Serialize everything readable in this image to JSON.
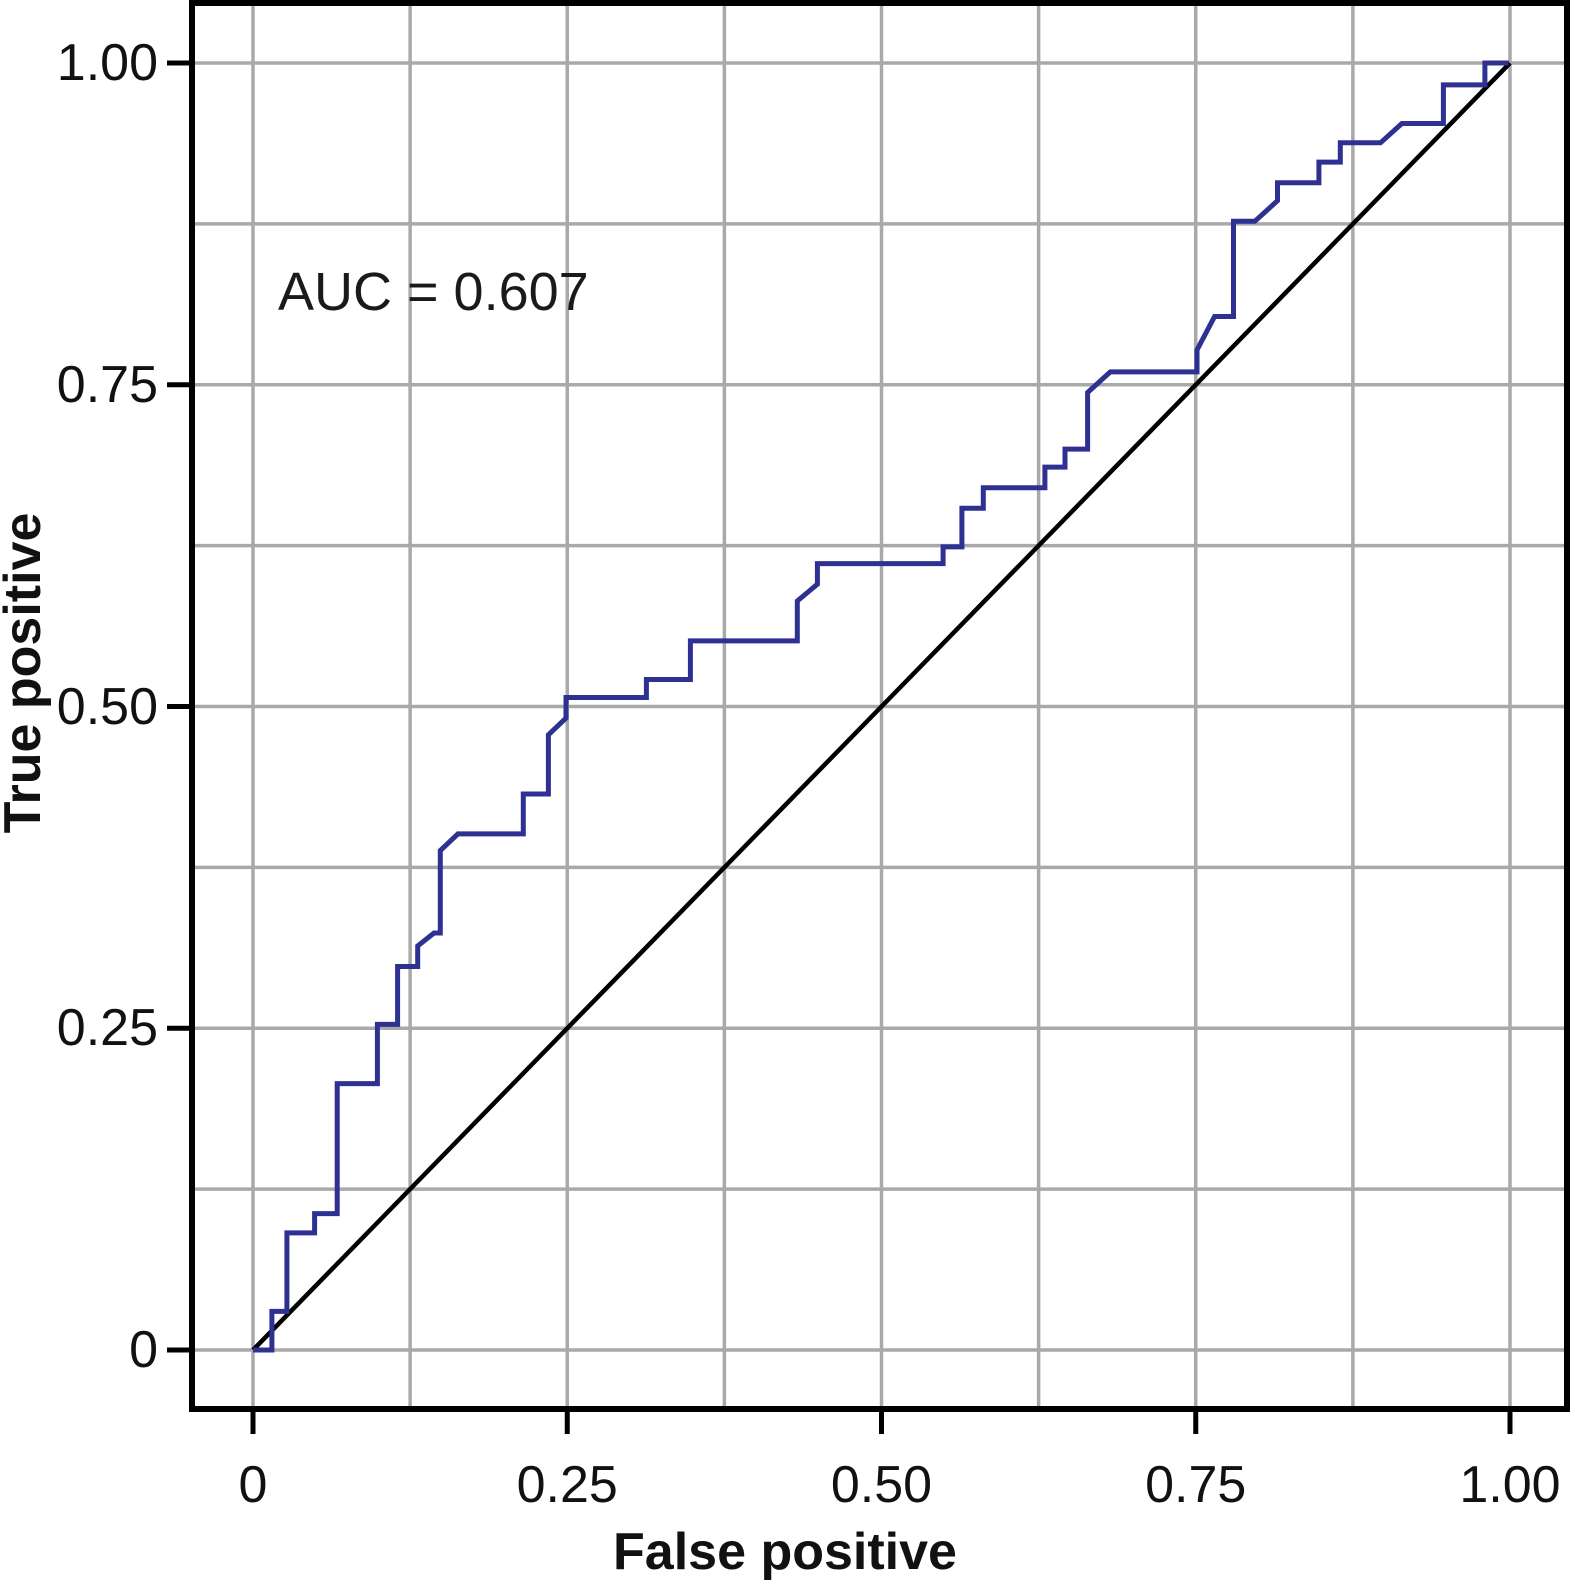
{
  "page": {
    "background_color": "#ffffff"
  },
  "chart_data": {
    "type": "line",
    "subtype": "roc-curve",
    "title": "",
    "annotation": "AUC = 0.607",
    "auc_value": 0.607,
    "xlabel": "False positive",
    "ylabel": "True positive",
    "xlim": [
      -0.05,
      1.047
    ],
    "ylim": [
      -0.047,
      1.047
    ],
    "grid": "on",
    "grid_step": 0.125,
    "legend_position": "none",
    "x_ticks": {
      "values": [
        0,
        0.25,
        0.5,
        0.75,
        1.0
      ],
      "labels": [
        "0",
        "0.25",
        "0.50",
        "0.75",
        "1.00"
      ]
    },
    "y_ticks": {
      "values": [
        0,
        0.25,
        0.5,
        0.75,
        1.0
      ],
      "labels": [
        "0",
        "0.25",
        "0.50",
        "0.75",
        "1.00"
      ]
    },
    "colors": {
      "roc_line": "#2e3192",
      "reference_line": "#000000",
      "gridline": "#a9a9a9",
      "frame": "#000000",
      "tick": "#000000",
      "text": "#111111"
    },
    "series": [
      {
        "name": "ROC curve",
        "color": "#2e3192",
        "width": 5,
        "points": [
          [
            0.0,
            0.0
          ],
          [
            0.015,
            0.0
          ],
          [
            0.015,
            0.03
          ],
          [
            0.027,
            0.03
          ],
          [
            0.027,
            0.091
          ],
          [
            0.049,
            0.091
          ],
          [
            0.049,
            0.106
          ],
          [
            0.067,
            0.106
          ],
          [
            0.067,
            0.207
          ],
          [
            0.099,
            0.207
          ],
          [
            0.099,
            0.253
          ],
          [
            0.115,
            0.253
          ],
          [
            0.115,
            0.298
          ],
          [
            0.131,
            0.298
          ],
          [
            0.131,
            0.314
          ],
          [
            0.144,
            0.324
          ],
          [
            0.149,
            0.324
          ],
          [
            0.149,
            0.388
          ],
          [
            0.163,
            0.401
          ],
          [
            0.215,
            0.401
          ],
          [
            0.215,
            0.432
          ],
          [
            0.235,
            0.432
          ],
          [
            0.235,
            0.478
          ],
          [
            0.249,
            0.491
          ],
          [
            0.249,
            0.507
          ],
          [
            0.313,
            0.507
          ],
          [
            0.313,
            0.521
          ],
          [
            0.348,
            0.521
          ],
          [
            0.348,
            0.551
          ],
          [
            0.433,
            0.551
          ],
          [
            0.433,
            0.582
          ],
          [
            0.449,
            0.595
          ],
          [
            0.449,
            0.611
          ],
          [
            0.549,
            0.611
          ],
          [
            0.549,
            0.624
          ],
          [
            0.564,
            0.624
          ],
          [
            0.564,
            0.654
          ],
          [
            0.581,
            0.654
          ],
          [
            0.581,
            0.67
          ],
          [
            0.63,
            0.67
          ],
          [
            0.63,
            0.686
          ],
          [
            0.646,
            0.686
          ],
          [
            0.646,
            0.7
          ],
          [
            0.664,
            0.7
          ],
          [
            0.664,
            0.744
          ],
          [
            0.682,
            0.76
          ],
          [
            0.751,
            0.76
          ],
          [
            0.751,
            0.777
          ],
          [
            0.765,
            0.803
          ],
          [
            0.78,
            0.803
          ],
          [
            0.78,
            0.877
          ],
          [
            0.797,
            0.877
          ],
          [
            0.815,
            0.893
          ],
          [
            0.815,
            0.907
          ],
          [
            0.848,
            0.907
          ],
          [
            0.848,
            0.923
          ],
          [
            0.865,
            0.923
          ],
          [
            0.865,
            0.938
          ],
          [
            0.897,
            0.938
          ],
          [
            0.914,
            0.953
          ],
          [
            0.947,
            0.953
          ],
          [
            0.947,
            0.983
          ],
          [
            0.98,
            0.983
          ],
          [
            0.98,
            1.0
          ],
          [
            0.999,
            1.0
          ]
        ]
      },
      {
        "name": "chance diagonal",
        "color": "#000000",
        "width": 4.5,
        "points": [
          [
            0,
            0
          ],
          [
            1,
            1
          ]
        ]
      }
    ]
  }
}
